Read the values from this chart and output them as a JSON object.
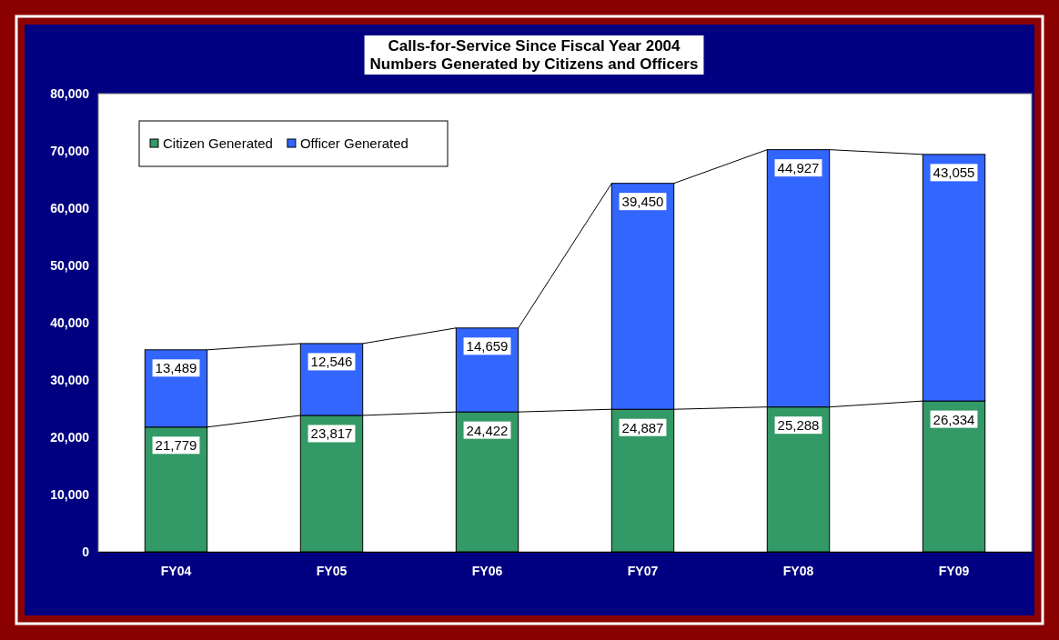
{
  "chart_data": {
    "type": "bar",
    "stacked": true,
    "title": "Calls-for-Service Since Fiscal Year 2004\nNumbers Generated by Citizens and Officers",
    "categories": [
      "FY04",
      "FY05",
      "FY06",
      "FY07",
      "FY08",
      "FY09"
    ],
    "series": [
      {
        "name": "Citizen Generated",
        "color": "#339966",
        "values": [
          21779,
          23817,
          24422,
          24887,
          25288,
          26334
        ],
        "value_labels": [
          "21,779",
          "23,817",
          "24,422",
          "24,887",
          "25,288",
          "26,334"
        ]
      },
      {
        "name": "Officer Generated",
        "color": "#3366ff",
        "values": [
          13489,
          12546,
          14659,
          39450,
          44927,
          43055
        ],
        "value_labels": [
          "13,489",
          "12,546",
          "14,659",
          "39,450",
          "44,927",
          "43,055"
        ]
      }
    ],
    "ylim": [
      0,
      80000
    ],
    "yticks": [
      {
        "value": 0,
        "label": "0"
      },
      {
        "value": 10000,
        "label": "10,000"
      },
      {
        "value": 20000,
        "label": "20,000"
      },
      {
        "value": 30000,
        "label": "30,000"
      },
      {
        "value": 40000,
        "label": "40,000"
      },
      {
        "value": 50000,
        "label": "50,000"
      },
      {
        "value": 60000,
        "label": "60,000"
      },
      {
        "value": 70000,
        "label": "70,000"
      },
      {
        "value": 80000,
        "label": "80,000"
      }
    ],
    "grid": false,
    "legend": "top left"
  }
}
